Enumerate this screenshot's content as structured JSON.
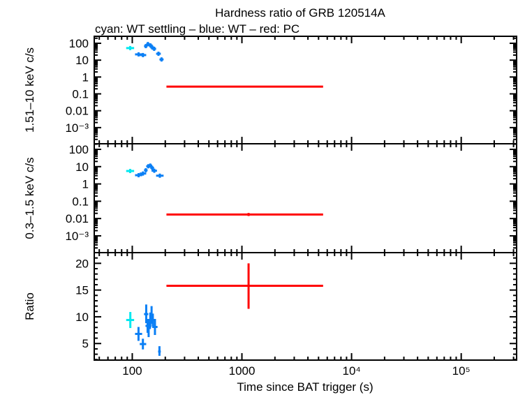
{
  "chart_data": [
    {
      "type": "scatter",
      "title": "Hardness ratio of GRB 120514A",
      "subtitle": "cyan: WT settling – blue: WT – red: PC",
      "xlabel": "Time since BAT trigger (s)",
      "ylabel": "1.51–10 keV c/s",
      "xscale": "log",
      "yscale": "log",
      "xlim": [
        45,
        320000
      ],
      "ylim": [
        0.00011,
        260
      ],
      "yticks": [
        "100",
        "10",
        "1",
        "0.1",
        "0.01",
        "10⁻³"
      ],
      "series": [
        {
          "color": "#00e8f0",
          "points": [
            {
              "x": [
                88,
                104
              ],
              "y": 52
            }
          ]
        },
        {
          "color": "#0a7ff5",
          "points": [
            {
              "x": [
                106,
                123
              ],
              "y": 22
            },
            {
              "x": [
                117,
                134
              ],
              "y": 20
            },
            {
              "x": [
                128,
                138
              ],
              "y": 68
            },
            {
              "x": [
                134,
                144
              ],
              "y": 90
            },
            {
              "x": [
                140,
                153
              ],
              "y": 75
            },
            {
              "x": [
                146,
                158
              ],
              "y": 57
            },
            {
              "x": [
                152,
                165
              ],
              "y": 47
            },
            {
              "x": [
                165,
                182
              ],
              "y": 24
            },
            {
              "x": [
                177,
                193
              ],
              "y": 11
            }
          ]
        },
        {
          "color": "#ff0000",
          "points": [
            {
              "x": [
                205,
                5500
              ],
              "xc": 1150,
              "y": 0.27,
              "yerr": [
                0.25,
                0.29
              ]
            }
          ]
        }
      ]
    },
    {
      "type": "scatter",
      "ylabel": "0.3–1.5 keV c/s",
      "xscale": "log",
      "yscale": "log",
      "xlim": [
        45,
        320000
      ],
      "ylim": [
        0.000107,
        210
      ],
      "yticks": [
        "100",
        "10",
        "1",
        "0.1",
        "0.01",
        "10⁻³"
      ],
      "series": [
        {
          "color": "#00e8f0",
          "points": [
            {
              "x": [
                88,
                104
              ],
              "y": 5.6
            }
          ]
        },
        {
          "color": "#0a7ff5",
          "points": [
            {
              "x": [
                106,
                123
              ],
              "y": 3.2
            },
            {
              "x": [
                117,
                134
              ],
              "y": 4.0
            },
            {
              "x": [
                128,
                138
              ],
              "y": 6.2
            },
            {
              "x": [
                134,
                146
              ],
              "y": 10.5
            },
            {
              "x": [
                140,
                152
              ],
              "y": 11.5
            },
            {
              "x": [
                146,
                158
              ],
              "y": 8.5
            },
            {
              "x": [
                150,
                168
              ],
              "y": 5.8
            },
            {
              "x": [
                165,
                193
              ],
              "y": 3.0
            }
          ]
        },
        {
          "color": "#ff0000",
          "points": [
            {
              "x": [
                205,
                5500
              ],
              "xc": 1150,
              "y": 0.017,
              "yerr": [
                0.014,
                0.021
              ]
            }
          ]
        }
      ]
    },
    {
      "type": "scatter",
      "ylabel": "Ratio",
      "xscale": "log",
      "yscale": "linear",
      "xlim": [
        45,
        320000
      ],
      "ylim": [
        1.9,
        22
      ],
      "yticks": [
        "20",
        "15",
        "10",
        "5"
      ],
      "xticks": [
        "100",
        "1000",
        "10⁴",
        "10⁵"
      ],
      "series": [
        {
          "color": "#00e8f0",
          "points": [
            {
              "x": [
                88,
                104
              ],
              "xc": 96,
              "y": 9.4,
              "yerr": [
                7.9,
                10.9
              ]
            }
          ]
        },
        {
          "color": "#0a7ff5",
          "points": [
            {
              "x": [
                106,
                123
              ],
              "xc": 114,
              "y": 6.8,
              "yerr": [
                5.5,
                8.1
              ]
            },
            {
              "x": [
                117,
                134
              ],
              "xc": 125,
              "y": 4.9,
              "yerr": [
                3.9,
                5.9
              ]
            },
            {
              "x": [
                128,
                140
              ],
              "xc": 134,
              "y": 10.5,
              "yerr": [
                8.8,
                12.3
              ]
            },
            {
              "x": [
                132,
                144
              ],
              "xc": 138,
              "y": 8.3,
              "yerr": [
                7.0,
                9.6
              ]
            },
            {
              "x": [
                136,
                148
              ],
              "xc": 141,
              "y": 7.9,
              "yerr": [
                6.2,
                9.2
              ]
            },
            {
              "x": [
                140,
                152
              ],
              "xc": 146,
              "y": 9.4,
              "yerr": [
                8.0,
                10.8
              ]
            },
            {
              "x": [
                144,
                156
              ],
              "xc": 150,
              "y": 10.1,
              "yerr": [
                8.7,
                12.0
              ]
            },
            {
              "x": [
                148,
                160
              ],
              "xc": 154,
              "y": 9.4,
              "yerr": [
                8.2,
                10.6
              ]
            },
            {
              "x": [
                152,
                170
              ],
              "xc": 161,
              "y": 8.1,
              "yerr": [
                6.6,
                9.6
              ]
            },
            {
              "x": [
                172,
                182
              ],
              "xc": 177,
              "y": 3.5,
              "yerr": [
                2.7,
                4.5
              ]
            }
          ]
        },
        {
          "color": "#ff0000",
          "points": [
            {
              "x": [
                205,
                5500
              ],
              "xc": 1150,
              "y": 15.8,
              "yerr": [
                11.5,
                20
              ]
            }
          ]
        }
      ]
    }
  ]
}
